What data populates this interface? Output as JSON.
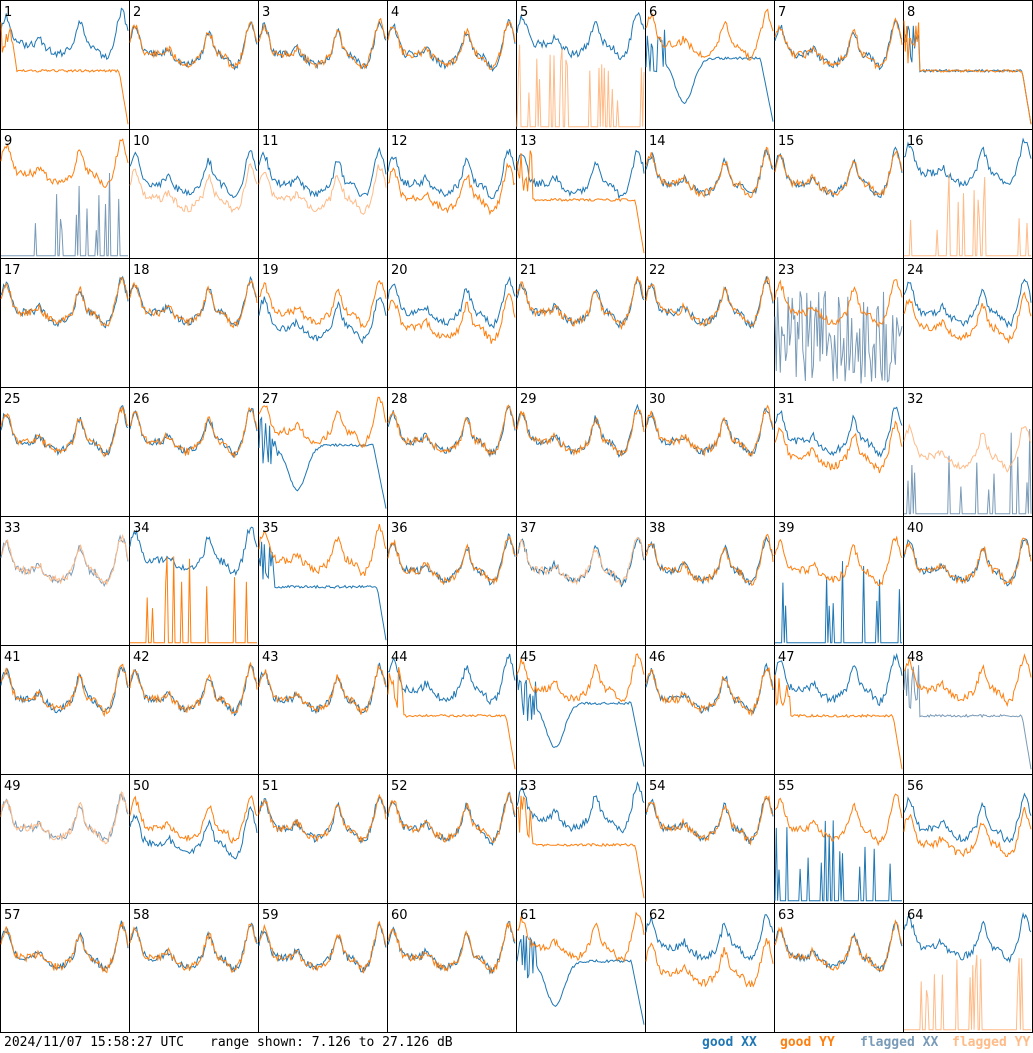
{
  "footer": {
    "timestamp": "2024/11/07 15:58:27 UTC",
    "range_text": "range shown: 7.126 to 27.126 dB"
  },
  "legend": [
    {
      "label": "good XX",
      "color": "#1f77b4"
    },
    {
      "label": "good YY",
      "color": "#ff7f0e"
    },
    {
      "label": "flagged XX",
      "color": "#7a9bb8"
    },
    {
      "label": "flagged YY",
      "color": "#ffbb88"
    }
  ],
  "chart_data": {
    "type": "line",
    "title": "",
    "xlabel": "",
    "ylabel": "",
    "ylim": [
      7.126,
      27.126
    ],
    "units": "dB",
    "grid": {
      "rows": 8,
      "cols": 8
    },
    "panels": [
      {
        "id": "1",
        "xx": "bandpass-high",
        "yy": "droop-flat",
        "xx_flag": false,
        "yy_flag": false
      },
      {
        "id": "2",
        "xx": "bandpass",
        "yy": "bandpass",
        "xx_flag": false,
        "yy_flag": false
      },
      {
        "id": "3",
        "xx": "bandpass",
        "yy": "bandpass",
        "xx_flag": false,
        "yy_flag": false
      },
      {
        "id": "4",
        "xx": "bandpass",
        "yy": "bandpass",
        "xx_flag": false,
        "yy_flag": false
      },
      {
        "id": "5",
        "xx": "bandpass-high",
        "yy": "spikes",
        "xx_flag": false,
        "yy_flag": true
      },
      {
        "id": "6",
        "xx": "dip-curve",
        "yy": "bandpass-high",
        "xx_flag": false,
        "yy_flag": false
      },
      {
        "id": "7",
        "xx": "bandpass",
        "yy": "bandpass",
        "xx_flag": false,
        "yy_flag": false
      },
      {
        "id": "8",
        "xx": "droop-flat",
        "yy": "droop-flat",
        "xx_flag": false,
        "yy_flag": false
      },
      {
        "id": "9",
        "xx": "spikes",
        "yy": "bandpass-high",
        "xx_flag": true,
        "yy_flag": false
      },
      {
        "id": "10",
        "xx": "bandpass",
        "yy": "bandpass-low",
        "xx_flag": false,
        "yy_flag": true
      },
      {
        "id": "11",
        "xx": "bandpass",
        "yy": "bandpass-low",
        "xx_flag": false,
        "yy_flag": true
      },
      {
        "id": "12",
        "xx": "bandpass",
        "yy": "bandpass-low",
        "xx_flag": false,
        "yy_flag": false
      },
      {
        "id": "13",
        "xx": "bandpass",
        "yy": "droop-flat",
        "xx_flag": false,
        "yy_flag": false
      },
      {
        "id": "14",
        "xx": "bandpass",
        "yy": "bandpass",
        "xx_flag": false,
        "yy_flag": false
      },
      {
        "id": "15",
        "xx": "bandpass",
        "yy": "bandpass",
        "xx_flag": false,
        "yy_flag": false
      },
      {
        "id": "16",
        "xx": "bandpass-high",
        "yy": "spikes",
        "xx_flag": false,
        "yy_flag": true
      },
      {
        "id": "17",
        "xx": "bandpass",
        "yy": "bandpass",
        "xx_flag": false,
        "yy_flag": false
      },
      {
        "id": "18",
        "xx": "bandpass",
        "yy": "bandpass",
        "xx_flag": false,
        "yy_flag": false
      },
      {
        "id": "19",
        "xx": "bandpass-low",
        "yy": "bandpass",
        "xx_flag": false,
        "yy_flag": false
      },
      {
        "id": "20",
        "xx": "bandpass",
        "yy": "bandpass-low",
        "xx_flag": false,
        "yy_flag": false
      },
      {
        "id": "21",
        "xx": "bandpass",
        "yy": "bandpass",
        "xx_flag": false,
        "yy_flag": false
      },
      {
        "id": "22",
        "xx": "bandpass",
        "yy": "bandpass",
        "xx_flag": false,
        "yy_flag": false
      },
      {
        "id": "23",
        "xx": "noise",
        "yy": "bandpass",
        "xx_flag": true,
        "yy_flag": false
      },
      {
        "id": "24",
        "xx": "bandpass",
        "yy": "bandpass-low",
        "xx_flag": false,
        "yy_flag": false
      },
      {
        "id": "25",
        "xx": "bandpass",
        "yy": "bandpass",
        "xx_flag": false,
        "yy_flag": false
      },
      {
        "id": "26",
        "xx": "bandpass",
        "yy": "bandpass",
        "xx_flag": false,
        "yy_flag": false
      },
      {
        "id": "27",
        "xx": "dip-curve",
        "yy": "bandpass-high",
        "xx_flag": false,
        "yy_flag": false
      },
      {
        "id": "28",
        "xx": "bandpass",
        "yy": "bandpass",
        "xx_flag": false,
        "yy_flag": false
      },
      {
        "id": "29",
        "xx": "bandpass",
        "yy": "bandpass",
        "xx_flag": false,
        "yy_flag": false
      },
      {
        "id": "30",
        "xx": "bandpass",
        "yy": "bandpass",
        "xx_flag": false,
        "yy_flag": false
      },
      {
        "id": "31",
        "xx": "bandpass",
        "yy": "bandpass-low",
        "xx_flag": false,
        "yy_flag": false
      },
      {
        "id": "32",
        "xx": "spikes",
        "yy": "bandpass-low",
        "xx_flag": true,
        "yy_flag": true
      },
      {
        "id": "33",
        "xx": "bandpass",
        "yy": "bandpass",
        "xx_flag": true,
        "yy_flag": true
      },
      {
        "id": "34",
        "xx": "bandpass-high",
        "yy": "spikes",
        "xx_flag": false,
        "yy_flag": false
      },
      {
        "id": "35",
        "xx": "droop-flat",
        "yy": "bandpass-high",
        "xx_flag": false,
        "yy_flag": false
      },
      {
        "id": "36",
        "xx": "bandpass",
        "yy": "bandpass",
        "xx_flag": false,
        "yy_flag": false
      },
      {
        "id": "37",
        "xx": "bandpass",
        "yy": "bandpass",
        "xx_flag": false,
        "yy_flag": true
      },
      {
        "id": "38",
        "xx": "bandpass",
        "yy": "bandpass",
        "xx_flag": false,
        "yy_flag": false
      },
      {
        "id": "39",
        "xx": "spikes",
        "yy": "bandpass",
        "xx_flag": false,
        "yy_flag": false
      },
      {
        "id": "40",
        "xx": "bandpass",
        "yy": "bandpass",
        "xx_flag": false,
        "yy_flag": false
      },
      {
        "id": "41",
        "xx": "bandpass",
        "yy": "bandpass",
        "xx_flag": false,
        "yy_flag": false
      },
      {
        "id": "42",
        "xx": "bandpass",
        "yy": "bandpass",
        "xx_flag": false,
        "yy_flag": false
      },
      {
        "id": "43",
        "xx": "bandpass",
        "yy": "bandpass",
        "xx_flag": false,
        "yy_flag": false
      },
      {
        "id": "44",
        "xx": "bandpass-high",
        "yy": "droop-flat",
        "xx_flag": false,
        "yy_flag": false
      },
      {
        "id": "45",
        "xx": "dip-curve",
        "yy": "bandpass-high",
        "xx_flag": false,
        "yy_flag": false
      },
      {
        "id": "46",
        "xx": "bandpass",
        "yy": "bandpass",
        "xx_flag": false,
        "yy_flag": false
      },
      {
        "id": "47",
        "xx": "bandpass-high",
        "yy": "droop-flat",
        "xx_flag": false,
        "yy_flag": false
      },
      {
        "id": "48",
        "xx": "droop-flat",
        "yy": "bandpass-high",
        "xx_flag": true,
        "yy_flag": false
      },
      {
        "id": "49",
        "xx": "bandpass",
        "yy": "bandpass",
        "xx_flag": true,
        "yy_flag": true
      },
      {
        "id": "50",
        "xx": "bandpass-low",
        "yy": "bandpass",
        "xx_flag": false,
        "yy_flag": false
      },
      {
        "id": "51",
        "xx": "bandpass",
        "yy": "bandpass",
        "xx_flag": false,
        "yy_flag": false
      },
      {
        "id": "52",
        "xx": "bandpass",
        "yy": "bandpass",
        "xx_flag": false,
        "yy_flag": false
      },
      {
        "id": "53",
        "xx": "bandpass-high",
        "yy": "droop-flat",
        "xx_flag": false,
        "yy_flag": false
      },
      {
        "id": "54",
        "xx": "bandpass",
        "yy": "bandpass",
        "xx_flag": false,
        "yy_flag": false
      },
      {
        "id": "55",
        "xx": "spikes",
        "yy": "bandpass",
        "xx_flag": false,
        "yy_flag": false
      },
      {
        "id": "56",
        "xx": "bandpass",
        "yy": "bandpass-low",
        "xx_flag": false,
        "yy_flag": false
      },
      {
        "id": "57",
        "xx": "bandpass",
        "yy": "bandpass",
        "xx_flag": false,
        "yy_flag": false
      },
      {
        "id": "58",
        "xx": "bandpass",
        "yy": "bandpass",
        "xx_flag": false,
        "yy_flag": false
      },
      {
        "id": "59",
        "xx": "bandpass",
        "yy": "bandpass",
        "xx_flag": false,
        "yy_flag": false
      },
      {
        "id": "60",
        "xx": "bandpass",
        "yy": "bandpass",
        "xx_flag": false,
        "yy_flag": false
      },
      {
        "id": "61",
        "xx": "dip-curve",
        "yy": "bandpass-high",
        "xx_flag": false,
        "yy_flag": false
      },
      {
        "id": "62",
        "xx": "bandpass-high",
        "yy": "bandpass-low",
        "xx_flag": false,
        "yy_flag": false
      },
      {
        "id": "63",
        "xx": "bandpass",
        "yy": "bandpass",
        "xx_flag": false,
        "yy_flag": false
      },
      {
        "id": "64",
        "xx": "bandpass-high",
        "yy": "spikes",
        "xx_flag": false,
        "yy_flag": true
      }
    ]
  }
}
